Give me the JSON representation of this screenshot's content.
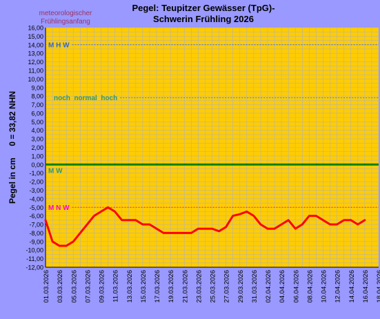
{
  "chart_data": {
    "type": "line",
    "title": "Pegel: Teupitzer Gewässer (TpG)-",
    "subtitle": "Schwerin  Frühling 2026",
    "ylabel": "Pegel in cm     0 = 33,82 NHN",
    "xlabel": "",
    "season_note": [
      "meteorologischer",
      "Frühlingsanfang"
    ],
    "ylim": [
      -12,
      16
    ],
    "ytick_step": 1,
    "y_ticks": [
      "16,00",
      "15,00",
      "14,00",
      "13,00",
      "12,00",
      "11,00",
      "10,00",
      "9,00",
      "8,00",
      "7,00",
      "6,00",
      "5,00",
      "4,00",
      "3,00",
      "2,00",
      "1,00",
      "0,00",
      "-1,00",
      "-2,00",
      "-3,00",
      "-4,00",
      "-5,00",
      "-6,00",
      "-7,00",
      "-8,00",
      "-9,00",
      "-10,00",
      "-11,00",
      "-12,00"
    ],
    "x_start": "2026-03-01",
    "x_end": "2026-04-18",
    "x_ticks": [
      "01.03.2026",
      "03.03.2026",
      "05.03.2026",
      "07.03.2026",
      "09.03.2026",
      "11.03.2026",
      "13.03.2026",
      "15.03.2026",
      "17.03.2026",
      "19.03.2026",
      "21.03.2026",
      "23.03.2026",
      "25.03.2026",
      "27.03.2026",
      "29.03.2026",
      "31.03.2026",
      "02.04.2026",
      "04.04.2026",
      "06.04.2026",
      "08.04.2026",
      "10.04.2026",
      "12.04.2026",
      "14.04.2026",
      "16.04.2026",
      "18.04.2026"
    ],
    "grid": true,
    "reference_lines": [
      {
        "label": "M H W",
        "value": 14,
        "style": "dashed",
        "color": "#3366ff",
        "label_color": "#3366cc"
      },
      {
        "label": "noch  normal  hoch",
        "value": 7.8,
        "style": "dashed",
        "color": "#339966",
        "label_color": "#339966"
      },
      {
        "label": "M W",
        "value": 0,
        "style": "solid",
        "color": "#008000",
        "label_color": "#339966"
      },
      {
        "label": "M N W",
        "value": -5,
        "style": "dashed",
        "color": "#ff00cc",
        "label_color": "#ff00cc"
      }
    ],
    "series": [
      {
        "color": "#ff0000",
        "points": [
          [
            "2026-03-01",
            -6.5
          ],
          [
            "2026-03-02",
            -9
          ],
          [
            "2026-03-03",
            -9.5
          ],
          [
            "2026-03-04",
            -9.5
          ],
          [
            "2026-03-05",
            -9
          ],
          [
            "2026-03-06",
            -8
          ],
          [
            "2026-03-07",
            -7
          ],
          [
            "2026-03-08",
            -6
          ],
          [
            "2026-03-09",
            -5.5
          ],
          [
            "2026-03-10",
            -5
          ],
          [
            "2026-03-11",
            -5.5
          ],
          [
            "2026-03-12",
            -6.5
          ],
          [
            "2026-03-13",
            -6.5
          ],
          [
            "2026-03-14",
            -6.5
          ],
          [
            "2026-03-15",
            -7
          ],
          [
            "2026-03-16",
            -7
          ],
          [
            "2026-03-17",
            -7.5
          ],
          [
            "2026-03-18",
            -8
          ],
          [
            "2026-03-19",
            -8
          ],
          [
            "2026-03-20",
            -8
          ],
          [
            "2026-03-21",
            -8
          ],
          [
            "2026-03-22",
            -8
          ],
          [
            "2026-03-23",
            -7.5
          ],
          [
            "2026-03-24",
            -7.5
          ],
          [
            "2026-03-25",
            -7.5
          ],
          [
            "2026-03-26",
            -7.8
          ],
          [
            "2026-03-27",
            -7.3
          ],
          [
            "2026-03-28",
            -6
          ],
          [
            "2026-03-29",
            -5.8
          ],
          [
            "2026-03-30",
            -5.5
          ],
          [
            "2026-03-31",
            -6
          ],
          [
            "2026-04-01",
            -7
          ],
          [
            "2026-04-02",
            -7.5
          ],
          [
            "2026-04-03",
            -7.5
          ],
          [
            "2026-04-04",
            -7
          ],
          [
            "2026-04-05",
            -6.5
          ],
          [
            "2026-04-06",
            -7.5
          ],
          [
            "2026-04-07",
            -7
          ],
          [
            "2026-04-08",
            -6
          ],
          [
            "2026-04-09",
            -6
          ],
          [
            "2026-04-10",
            -6.5
          ],
          [
            "2026-04-11",
            -7
          ],
          [
            "2026-04-12",
            -7
          ],
          [
            "2026-04-13",
            -6.5
          ],
          [
            "2026-04-14",
            -6.5
          ],
          [
            "2026-04-15",
            -7
          ],
          [
            "2026-04-16",
            -6.5
          ]
        ]
      }
    ],
    "colors": {
      "page_bg": "#9999ff",
      "plot_bg": "#ffcc00",
      "grid": "#b3b3b3"
    }
  }
}
